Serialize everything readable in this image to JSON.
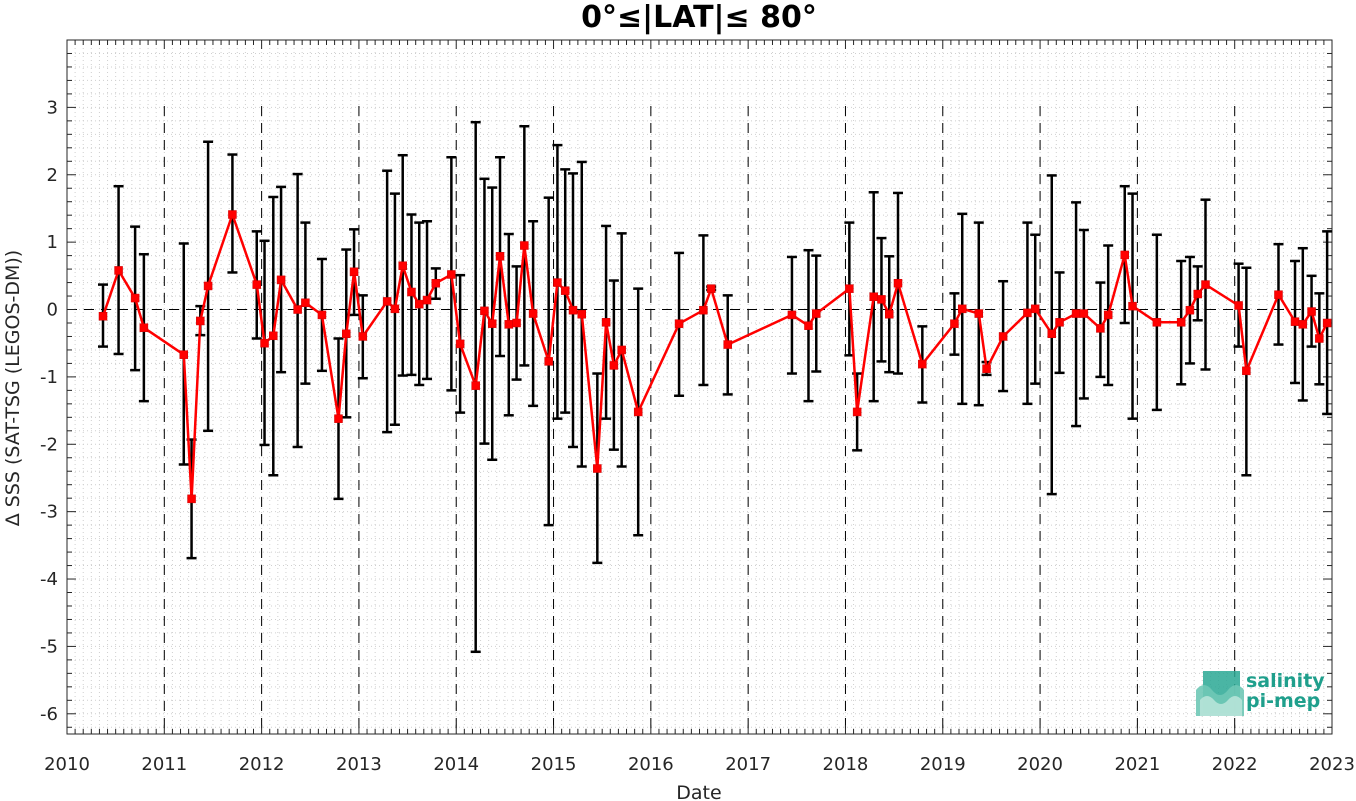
{
  "chart_data": {
    "type": "line",
    "title": "0°≤|LAT|≤ 80°",
    "xlabel": "Date",
    "ylabel": "Δ SSS (SAT-TSG (LEGOS-DM))",
    "xlim": [
      2010,
      2023
    ],
    "ylim": [
      -6.3,
      4.0
    ],
    "x_ticks": [
      "2010",
      "2011",
      "2012",
      "2013",
      "2014",
      "2015",
      "2016",
      "2017",
      "2018",
      "2019",
      "2020",
      "2021",
      "2022",
      "2023"
    ],
    "y_ticks": [
      "3",
      "2",
      "1",
      "0",
      "-1",
      "-2",
      "-3",
      "-4",
      "-5",
      "-6"
    ],
    "y_tick_values": [
      3,
      2,
      1,
      0,
      -1,
      -2,
      -3,
      -4,
      -5,
      -6
    ],
    "grid": "minor dotted",
    "year_separators": "dashed vertical lines at each year",
    "zero_line": "dashed horizontal at 0",
    "line_color": "#ff0000",
    "errorbar_color": "#000000",
    "series": [
      {
        "points": [
          {
            "x": 2010.37,
            "y": -0.1,
            "lo": -0.55,
            "hi": 0.37
          },
          {
            "x": 2010.53,
            "y": 0.58,
            "lo": -0.66,
            "hi": 1.83
          },
          {
            "x": 2010.7,
            "y": 0.17,
            "lo": -0.9,
            "hi": 1.23
          },
          {
            "x": 2010.79,
            "y": -0.27,
            "lo": -1.36,
            "hi": 0.82
          },
          {
            "x": 2011.2,
            "y": -0.67,
            "lo": -2.3,
            "hi": 0.98
          },
          {
            "x": 2011.28,
            "y": -2.81,
            "lo": -3.69,
            "hi": -1.93
          },
          {
            "x": 2011.37,
            "y": -0.17,
            "lo": -0.38,
            "hi": 0.05
          },
          {
            "x": 2011.45,
            "y": 0.35,
            "lo": -1.8,
            "hi": 2.49
          },
          {
            "x": 2011.7,
            "y": 1.41,
            "lo": 0.55,
            "hi": 2.3
          },
          {
            "x": 2011.95,
            "y": 0.37,
            "lo": -0.43,
            "hi": 1.16
          },
          {
            "x": 2012.03,
            "y": -0.5,
            "lo": -2.01,
            "hi": 1.02
          },
          {
            "x": 2012.12,
            "y": -0.39,
            "lo": -2.46,
            "hi": 1.67
          },
          {
            "x": 2012.2,
            "y": 0.44,
            "lo": -0.93,
            "hi": 1.82
          },
          {
            "x": 2012.37,
            "y": 0.0,
            "lo": -2.04,
            "hi": 2.01
          },
          {
            "x": 2012.45,
            "y": 0.1,
            "lo": -1.1,
            "hi": 1.29
          },
          {
            "x": 2012.62,
            "y": -0.08,
            "lo": -0.91,
            "hi": 0.75
          },
          {
            "x": 2012.79,
            "y": -1.62,
            "lo": -2.81,
            "hi": -0.43
          },
          {
            "x": 2012.87,
            "y": -0.36,
            "lo": -1.6,
            "hi": 0.89
          },
          {
            "x": 2012.95,
            "y": 0.56,
            "lo": -0.08,
            "hi": 1.19
          },
          {
            "x": 2013.04,
            "y": -0.4,
            "lo": -1.02,
            "hi": 0.21
          },
          {
            "x": 2013.29,
            "y": 0.12,
            "lo": -1.82,
            "hi": 2.06
          },
          {
            "x": 2013.37,
            "y": 0.01,
            "lo": -1.71,
            "hi": 1.72
          },
          {
            "x": 2013.45,
            "y": 0.65,
            "lo": -0.98,
            "hi": 2.29
          },
          {
            "x": 2013.54,
            "y": 0.26,
            "lo": -0.97,
            "hi": 1.41
          },
          {
            "x": 2013.62,
            "y": 0.08,
            "lo": -1.12,
            "hi": 1.29
          },
          {
            "x": 2013.7,
            "y": 0.14,
            "lo": -1.03,
            "hi": 1.31
          },
          {
            "x": 2013.79,
            "y": 0.39,
            "lo": 0.16,
            "hi": 0.61
          },
          {
            "x": 2013.95,
            "y": 0.52,
            "lo": -1.2,
            "hi": 2.26
          },
          {
            "x": 2014.04,
            "y": -0.51,
            "lo": -1.53,
            "hi": 0.51
          },
          {
            "x": 2014.2,
            "y": -1.13,
            "lo": -5.08,
            "hi": 2.78
          },
          {
            "x": 2014.29,
            "y": -0.02,
            "lo": -1.99,
            "hi": 1.94
          },
          {
            "x": 2014.37,
            "y": -0.21,
            "lo": -2.23,
            "hi": 1.81
          },
          {
            "x": 2014.45,
            "y": 0.79,
            "lo": -0.69,
            "hi": 2.26
          },
          {
            "x": 2014.54,
            "y": -0.22,
            "lo": -1.57,
            "hi": 1.12
          },
          {
            "x": 2014.62,
            "y": -0.2,
            "lo": -1.04,
            "hi": 0.64
          },
          {
            "x": 2014.7,
            "y": 0.95,
            "lo": -0.83,
            "hi": 2.72
          },
          {
            "x": 2014.79,
            "y": -0.06,
            "lo": -1.43,
            "hi": 1.31
          },
          {
            "x": 2014.95,
            "y": -0.77,
            "lo": -3.2,
            "hi": 1.66
          },
          {
            "x": 2015.04,
            "y": 0.4,
            "lo": -1.62,
            "hi": 2.44
          },
          {
            "x": 2015.12,
            "y": 0.28,
            "lo": -1.53,
            "hi": 2.08
          },
          {
            "x": 2015.2,
            "y": -0.01,
            "lo": -2.04,
            "hi": 2.02
          },
          {
            "x": 2015.29,
            "y": -0.07,
            "lo": -2.33,
            "hi": 2.19
          },
          {
            "x": 2015.45,
            "y": -2.36,
            "lo": -3.76,
            "hi": -0.95
          },
          {
            "x": 2015.54,
            "y": -0.19,
            "lo": -1.62,
            "hi": 1.24
          },
          {
            "x": 2015.62,
            "y": -0.83,
            "lo": -2.08,
            "hi": 0.43
          },
          {
            "x": 2015.7,
            "y": -0.6,
            "lo": -2.33,
            "hi": 1.13
          },
          {
            "x": 2015.87,
            "y": -1.52,
            "lo": -3.35,
            "hi": 0.31
          },
          {
            "x": 2016.29,
            "y": -0.21,
            "lo": -1.28,
            "hi": 0.84
          },
          {
            "x": 2016.54,
            "y": -0.01,
            "lo": -1.12,
            "hi": 1.1
          },
          {
            "x": 2016.62,
            "y": 0.31,
            "lo": 0.29,
            "hi": 0.34
          },
          {
            "x": 2016.79,
            "y": -0.52,
            "lo": -1.26,
            "hi": 0.21
          },
          {
            "x": 2017.45,
            "y": -0.08,
            "lo": -0.95,
            "hi": 0.78
          },
          {
            "x": 2017.62,
            "y": -0.24,
            "lo": -1.36,
            "hi": 0.88
          },
          {
            "x": 2017.7,
            "y": -0.06,
            "lo": -0.92,
            "hi": 0.8
          },
          {
            "x": 2018.04,
            "y": 0.31,
            "lo": -0.68,
            "hi": 1.29
          },
          {
            "x": 2018.12,
            "y": -1.52,
            "lo": -2.09,
            "hi": -0.95
          },
          {
            "x": 2018.29,
            "y": 0.19,
            "lo": -1.36,
            "hi": 1.74
          },
          {
            "x": 2018.37,
            "y": 0.15,
            "lo": -0.77,
            "hi": 1.06
          },
          {
            "x": 2018.45,
            "y": -0.07,
            "lo": -0.93,
            "hi": 0.79
          },
          {
            "x": 2018.54,
            "y": 0.39,
            "lo": -0.95,
            "hi": 1.73
          },
          {
            "x": 2018.79,
            "y": -0.81,
            "lo": -1.38,
            "hi": -0.25
          },
          {
            "x": 2019.12,
            "y": -0.21,
            "lo": -0.67,
            "hi": 0.24
          },
          {
            "x": 2019.2,
            "y": 0.01,
            "lo": -1.4,
            "hi": 1.42
          },
          {
            "x": 2019.37,
            "y": -0.06,
            "lo": -1.42,
            "hi": 1.29
          },
          {
            "x": 2019.45,
            "y": -0.88,
            "lo": -0.97,
            "hi": -0.78
          },
          {
            "x": 2019.62,
            "y": -0.4,
            "lo": -1.21,
            "hi": 0.42
          },
          {
            "x": 2019.87,
            "y": -0.05,
            "lo": -1.4,
            "hi": 1.29
          },
          {
            "x": 2019.95,
            "y": 0.01,
            "lo": -1.1,
            "hi": 1.11
          },
          {
            "x": 2020.12,
            "y": -0.36,
            "lo": -2.74,
            "hi": 1.99
          },
          {
            "x": 2020.2,
            "y": -0.19,
            "lo": -0.94,
            "hi": 0.55
          },
          {
            "x": 2020.37,
            "y": -0.06,
            "lo": -1.73,
            "hi": 1.59
          },
          {
            "x": 2020.45,
            "y": -0.06,
            "lo": -1.32,
            "hi": 1.18
          },
          {
            "x": 2020.62,
            "y": -0.28,
            "lo": -1.0,
            "hi": 0.4
          },
          {
            "x": 2020.7,
            "y": -0.08,
            "lo": -1.12,
            "hi": 0.95
          },
          {
            "x": 2020.87,
            "y": 0.81,
            "lo": -0.2,
            "hi": 1.83
          },
          {
            "x": 2020.95,
            "y": 0.05,
            "lo": -1.62,
            "hi": 1.72
          },
          {
            "x": 2021.2,
            "y": -0.19,
            "lo": -1.49,
            "hi": 1.11
          },
          {
            "x": 2021.45,
            "y": -0.19,
            "lo": -1.11,
            "hi": 0.72
          },
          {
            "x": 2021.54,
            "y": -0.01,
            "lo": -0.8,
            "hi": 0.78
          },
          {
            "x": 2021.62,
            "y": 0.23,
            "lo": -0.16,
            "hi": 0.64
          },
          {
            "x": 2021.7,
            "y": 0.37,
            "lo": -0.89,
            "hi": 1.63
          },
          {
            "x": 2022.04,
            "y": 0.06,
            "lo": -0.55,
            "hi": 0.68
          },
          {
            "x": 2022.12,
            "y": -0.91,
            "lo": -2.46,
            "hi": 0.62
          },
          {
            "x": 2022.45,
            "y": 0.22,
            "lo": -0.52,
            "hi": 0.97
          },
          {
            "x": 2022.62,
            "y": -0.18,
            "lo": -1.09,
            "hi": 0.72
          },
          {
            "x": 2022.7,
            "y": -0.22,
            "lo": -1.35,
            "hi": 0.91
          },
          {
            "x": 2022.79,
            "y": -0.03,
            "lo": -0.55,
            "hi": 0.5
          },
          {
            "x": 2022.87,
            "y": -0.43,
            "lo": -1.11,
            "hi": 0.24
          },
          {
            "x": 2022.95,
            "y": -0.2,
            "lo": -1.55,
            "hi": 1.16
          }
        ]
      }
    ]
  },
  "logo": {
    "line1": "salinity",
    "line2": "pi-mep",
    "color": "#1f9f8c",
    "icon": "wave-logo-icon"
  }
}
